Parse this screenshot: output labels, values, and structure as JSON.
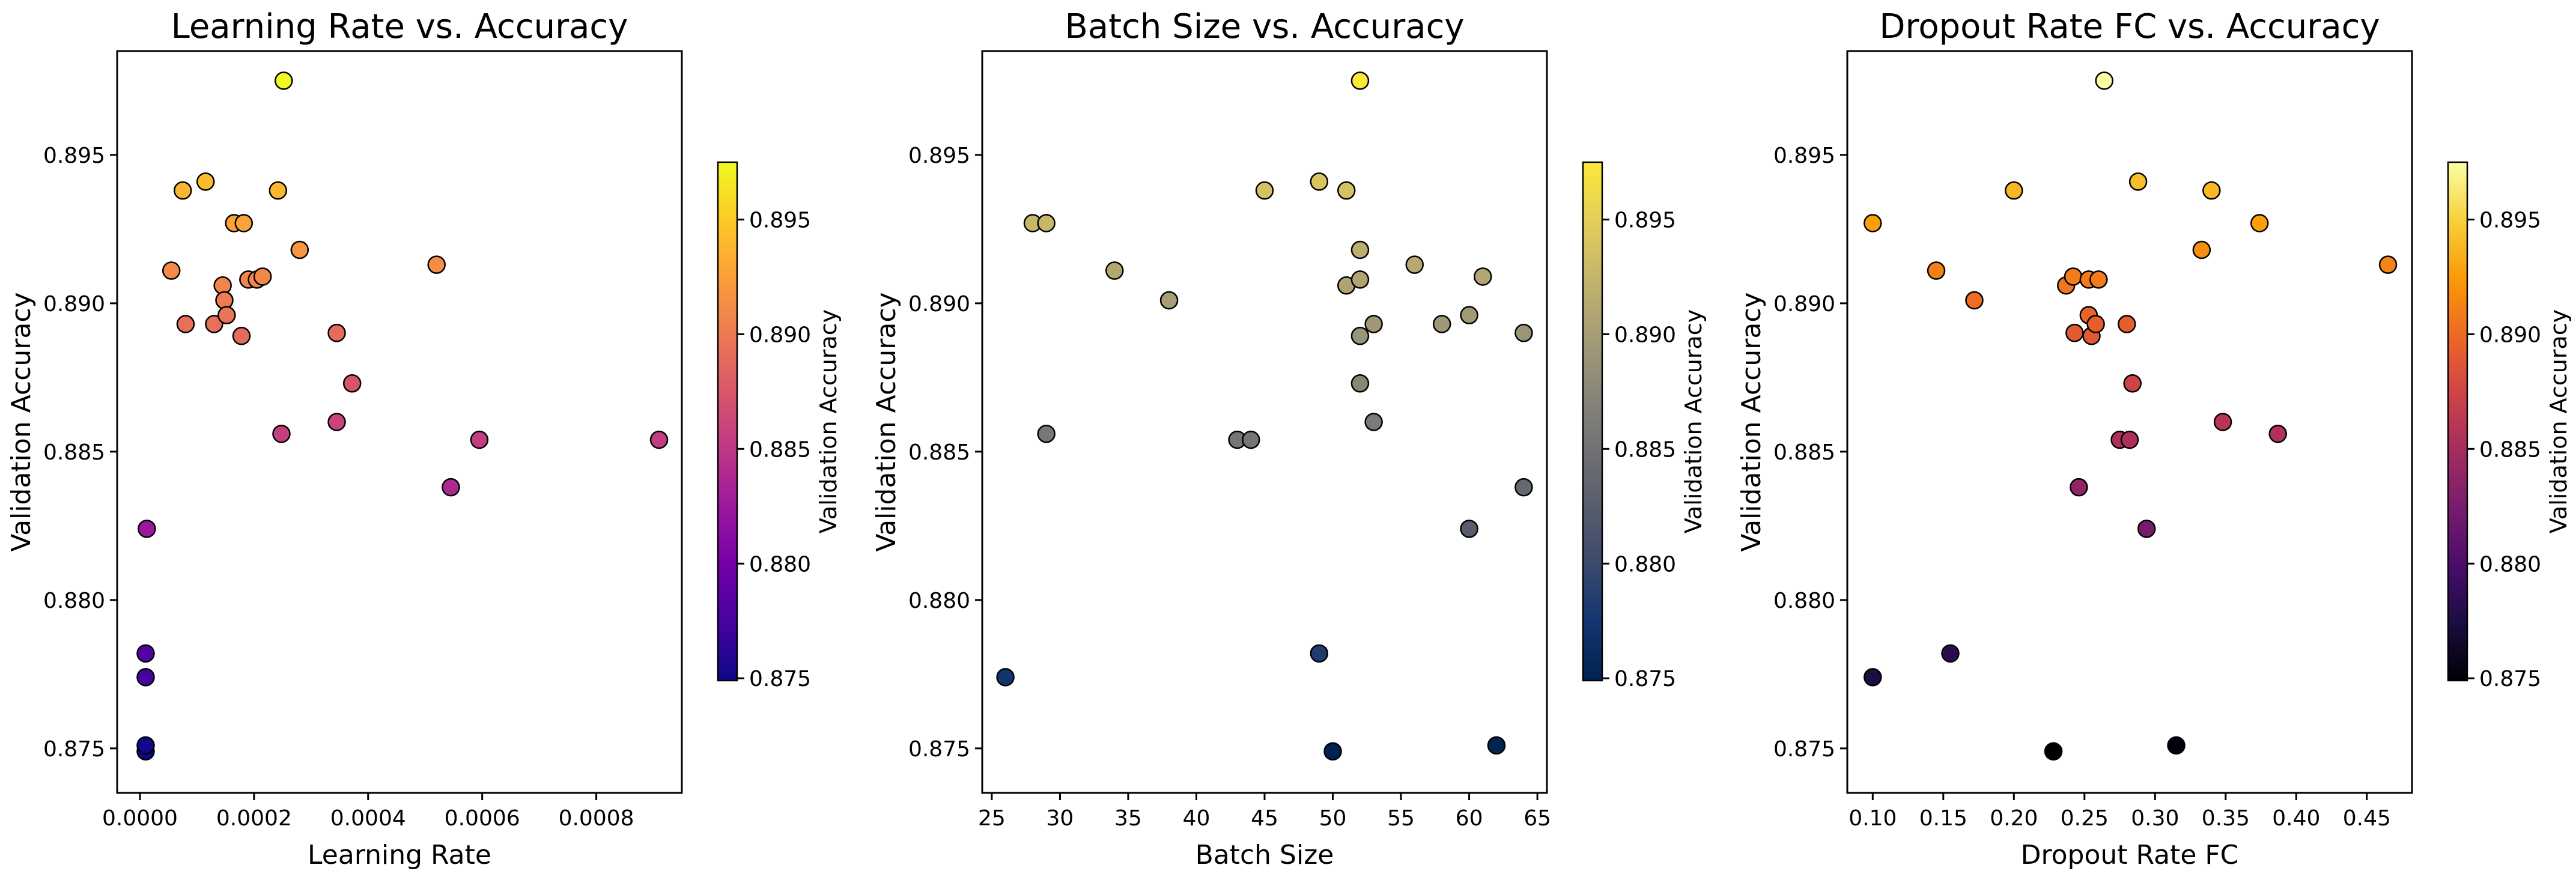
{
  "chart_data": [
    {
      "type": "scatter",
      "title": "Learning Rate vs. Accuracy",
      "xlabel": "Learning Rate",
      "ylabel": "Validation Accuracy",
      "colorbar_label": "Validation Accuracy",
      "colormap": "plasma",
      "xlim": [
        -4e-05,
        0.00095
      ],
      "ylim": [
        0.8735,
        0.8985
      ],
      "xticks": [
        0.0,
        0.0002,
        0.0004,
        0.0006,
        0.0008
      ],
      "xtick_labels": [
        "0.0000",
        "0.0002",
        "0.0004",
        "0.0006",
        "0.0008"
      ],
      "points": [
        {
          "x": 1e-05,
          "y": 0.8749
        },
        {
          "x": 1e-05,
          "y": 0.8751
        },
        {
          "x": 1e-05,
          "y": 0.8774
        },
        {
          "x": 1e-05,
          "y": 0.8782
        },
        {
          "x": 1.2e-05,
          "y": 0.8824
        },
        {
          "x": 5.5e-05,
          "y": 0.8911
        },
        {
          "x": 7.5e-05,
          "y": 0.8938
        },
        {
          "x": 8e-05,
          "y": 0.8893
        },
        {
          "x": 0.000115,
          "y": 0.8941
        },
        {
          "x": 0.00013,
          "y": 0.8893
        },
        {
          "x": 0.000145,
          "y": 0.8906
        },
        {
          "x": 0.000148,
          "y": 0.8901
        },
        {
          "x": 0.000152,
          "y": 0.8896
        },
        {
          "x": 0.000165,
          "y": 0.8927
        },
        {
          "x": 0.000182,
          "y": 0.8927
        },
        {
          "x": 0.000178,
          "y": 0.8889
        },
        {
          "x": 0.00019,
          "y": 0.8908
        },
        {
          "x": 0.000205,
          "y": 0.8908
        },
        {
          "x": 0.000215,
          "y": 0.8909
        },
        {
          "x": 0.000242,
          "y": 0.8938
        },
        {
          "x": 0.000252,
          "y": 0.8975
        },
        {
          "x": 0.000248,
          "y": 0.8856
        },
        {
          "x": 0.00028,
          "y": 0.8918
        },
        {
          "x": 0.000345,
          "y": 0.889
        },
        {
          "x": 0.000345,
          "y": 0.886
        },
        {
          "x": 0.000372,
          "y": 0.8873
        },
        {
          "x": 0.00052,
          "y": 0.8913
        },
        {
          "x": 0.000545,
          "y": 0.8838
        },
        {
          "x": 0.000595,
          "y": 0.8854
        },
        {
          "x": 0.00091,
          "y": 0.8854
        }
      ]
    },
    {
      "type": "scatter",
      "title": "Batch Size vs. Accuracy",
      "xlabel": "Batch Size",
      "ylabel": "Validation Accuracy",
      "colorbar_label": "Validation Accuracy",
      "colormap": "cividis",
      "xlim": [
        24.3,
        65.7
      ],
      "ylim": [
        0.8735,
        0.8985
      ],
      "xticks": [
        25,
        30,
        35,
        40,
        45,
        50,
        55,
        60,
        65
      ],
      "xtick_labels": [
        "25",
        "30",
        "35",
        "40",
        "45",
        "50",
        "55",
        "60",
        "65"
      ],
      "points": [
        {
          "x": 26,
          "y": 0.8774
        },
        {
          "x": 28,
          "y": 0.8927
        },
        {
          "x": 29,
          "y": 0.8927
        },
        {
          "x": 29,
          "y": 0.8856
        },
        {
          "x": 34,
          "y": 0.8911
        },
        {
          "x": 38,
          "y": 0.8901
        },
        {
          "x": 43,
          "y": 0.8854
        },
        {
          "x": 44,
          "y": 0.8854
        },
        {
          "x": 45,
          "y": 0.8938
        },
        {
          "x": 49,
          "y": 0.8941
        },
        {
          "x": 49,
          "y": 0.8782
        },
        {
          "x": 50,
          "y": 0.8749
        },
        {
          "x": 51,
          "y": 0.8938
        },
        {
          "x": 51,
          "y": 0.8906
        },
        {
          "x": 52,
          "y": 0.8975
        },
        {
          "x": 52,
          "y": 0.8918
        },
        {
          "x": 52,
          "y": 0.8908
        },
        {
          "x": 52,
          "y": 0.8889
        },
        {
          "x": 52,
          "y": 0.8873
        },
        {
          "x": 53,
          "y": 0.8893
        },
        {
          "x": 53,
          "y": 0.886
        },
        {
          "x": 56,
          "y": 0.8913
        },
        {
          "x": 58,
          "y": 0.8893
        },
        {
          "x": 60,
          "y": 0.8896
        },
        {
          "x": 60,
          "y": 0.8824
        },
        {
          "x": 61,
          "y": 0.8909
        },
        {
          "x": 62,
          "y": 0.8751
        },
        {
          "x": 64,
          "y": 0.889
        },
        {
          "x": 64,
          "y": 0.8838
        }
      ]
    },
    {
      "type": "scatter",
      "title": "Dropout Rate FC vs. Accuracy",
      "xlabel": "Dropout Rate FC",
      "ylabel": "Validation Accuracy",
      "colorbar_label": "Validation Accuracy",
      "colormap": "inferno",
      "xlim": [
        0.082,
        0.482
      ],
      "ylim": [
        0.8735,
        0.8985
      ],
      "xticks": [
        0.1,
        0.15,
        0.2,
        0.25,
        0.3,
        0.35,
        0.4,
        0.45
      ],
      "xtick_labels": [
        "0.10",
        "0.15",
        "0.20",
        "0.25",
        "0.30",
        "0.35",
        "0.40",
        "0.45"
      ],
      "points": [
        {
          "x": 0.1,
          "y": 0.8927
        },
        {
          "x": 0.1,
          "y": 0.8774
        },
        {
          "x": 0.145,
          "y": 0.8911
        },
        {
          "x": 0.155,
          "y": 0.8782
        },
        {
          "x": 0.172,
          "y": 0.8901
        },
        {
          "x": 0.2,
          "y": 0.8938
        },
        {
          "x": 0.228,
          "y": 0.8749
        },
        {
          "x": 0.237,
          "y": 0.8906
        },
        {
          "x": 0.242,
          "y": 0.8909
        },
        {
          "x": 0.243,
          "y": 0.889
        },
        {
          "x": 0.246,
          "y": 0.8838
        },
        {
          "x": 0.253,
          "y": 0.8908
        },
        {
          "x": 0.253,
          "y": 0.8896
        },
        {
          "x": 0.255,
          "y": 0.8889
        },
        {
          "x": 0.258,
          "y": 0.8893
        },
        {
          "x": 0.26,
          "y": 0.8908
        },
        {
          "x": 0.264,
          "y": 0.8975
        },
        {
          "x": 0.275,
          "y": 0.8854
        },
        {
          "x": 0.28,
          "y": 0.8893
        },
        {
          "x": 0.282,
          "y": 0.8854
        },
        {
          "x": 0.284,
          "y": 0.8873
        },
        {
          "x": 0.288,
          "y": 0.8941
        },
        {
          "x": 0.294,
          "y": 0.8824
        },
        {
          "x": 0.315,
          "y": 0.8751
        },
        {
          "x": 0.333,
          "y": 0.8918
        },
        {
          "x": 0.34,
          "y": 0.8938
        },
        {
          "x": 0.348,
          "y": 0.886
        },
        {
          "x": 0.374,
          "y": 0.8927
        },
        {
          "x": 0.387,
          "y": 0.8856
        },
        {
          "x": 0.465,
          "y": 0.8913
        }
      ]
    }
  ],
  "shared": {
    "ylim": [
      0.8735,
      0.8985
    ],
    "yticks": [
      0.875,
      0.88,
      0.885,
      0.89,
      0.895
    ],
    "ytick_labels": [
      "0.875",
      "0.880",
      "0.885",
      "0.890",
      "0.895"
    ],
    "color_range": [
      0.8749,
      0.8975
    ],
    "colorbar_ticks": [
      0.875,
      0.88,
      0.885,
      0.89,
      0.895
    ],
    "colorbar_tick_labels": [
      "0.875",
      "0.880",
      "0.885",
      "0.890",
      "0.895"
    ]
  }
}
